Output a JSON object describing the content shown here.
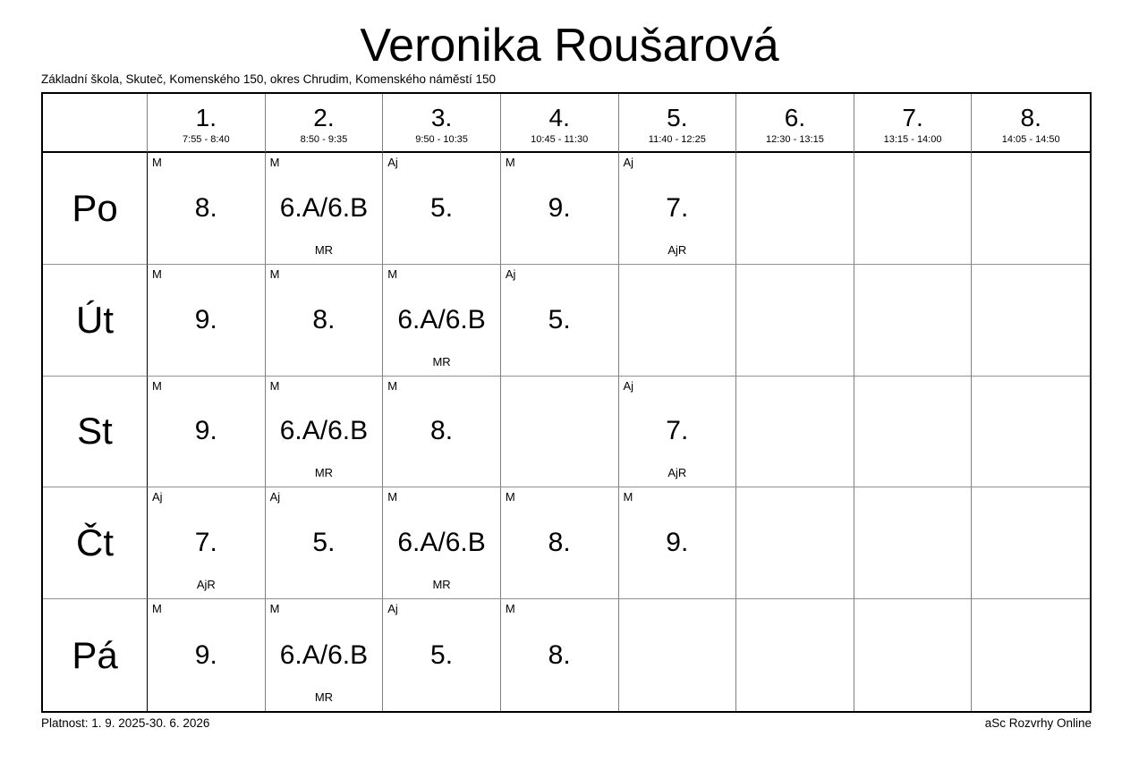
{
  "page": {
    "title": "Veronika Roušarová",
    "school": "Základní škola, Skuteč, Komenského 150, okres Chrudim, Komenského náměstí 150",
    "validity": "Platnost: 1. 9. 2025-30. 6. 2026",
    "brand": "aSc Rozvrhy Online"
  },
  "colors": {
    "background": "#ffffff",
    "text": "#000000",
    "outer_border": "#000000",
    "grid_line": "#808080"
  },
  "periods": [
    {
      "num": "1.",
      "time": "7:55 - 8:40"
    },
    {
      "num": "2.",
      "time": "8:50 - 9:35"
    },
    {
      "num": "3.",
      "time": "9:50 - 10:35"
    },
    {
      "num": "4.",
      "time": "10:45 - 11:30"
    },
    {
      "num": "5.",
      "time": "11:40 - 12:25"
    },
    {
      "num": "6.",
      "time": "12:30 - 13:15"
    },
    {
      "num": "7.",
      "time": "13:15 - 14:00"
    },
    {
      "num": "8.",
      "time": "14:05 - 14:50"
    }
  ],
  "days": [
    {
      "label": "Po",
      "lessons": [
        {
          "subject": "M",
          "group": "8.",
          "room": ""
        },
        {
          "subject": "M",
          "group": "6.A/6.B",
          "room": "MR"
        },
        {
          "subject": "Aj",
          "group": "5.",
          "room": ""
        },
        {
          "subject": "M",
          "group": "9.",
          "room": ""
        },
        {
          "subject": "Aj",
          "group": "7.",
          "room": "AjR"
        },
        null,
        null,
        null
      ]
    },
    {
      "label": "Út",
      "lessons": [
        {
          "subject": "M",
          "group": "9.",
          "room": ""
        },
        {
          "subject": "M",
          "group": "8.",
          "room": ""
        },
        {
          "subject": "M",
          "group": "6.A/6.B",
          "room": "MR"
        },
        {
          "subject": "Aj",
          "group": "5.",
          "room": ""
        },
        null,
        null,
        null,
        null
      ]
    },
    {
      "label": "St",
      "lessons": [
        {
          "subject": "M",
          "group": "9.",
          "room": ""
        },
        {
          "subject": "M",
          "group": "6.A/6.B",
          "room": "MR"
        },
        {
          "subject": "M",
          "group": "8.",
          "room": ""
        },
        null,
        {
          "subject": "Aj",
          "group": "7.",
          "room": "AjR"
        },
        null,
        null,
        null
      ]
    },
    {
      "label": "Čt",
      "lessons": [
        {
          "subject": "Aj",
          "group": "7.",
          "room": "AjR"
        },
        {
          "subject": "Aj",
          "group": "5.",
          "room": ""
        },
        {
          "subject": "M",
          "group": "6.A/6.B",
          "room": "MR"
        },
        {
          "subject": "M",
          "group": "8.",
          "room": ""
        },
        {
          "subject": "M",
          "group": "9.",
          "room": ""
        },
        null,
        null,
        null
      ]
    },
    {
      "label": "Pá",
      "lessons": [
        {
          "subject": "M",
          "group": "9.",
          "room": ""
        },
        {
          "subject": "M",
          "group": "6.A/6.B",
          "room": "MR"
        },
        {
          "subject": "Aj",
          "group": "5.",
          "room": ""
        },
        {
          "subject": "M",
          "group": "8.",
          "room": ""
        },
        null,
        null,
        null,
        null
      ]
    }
  ]
}
